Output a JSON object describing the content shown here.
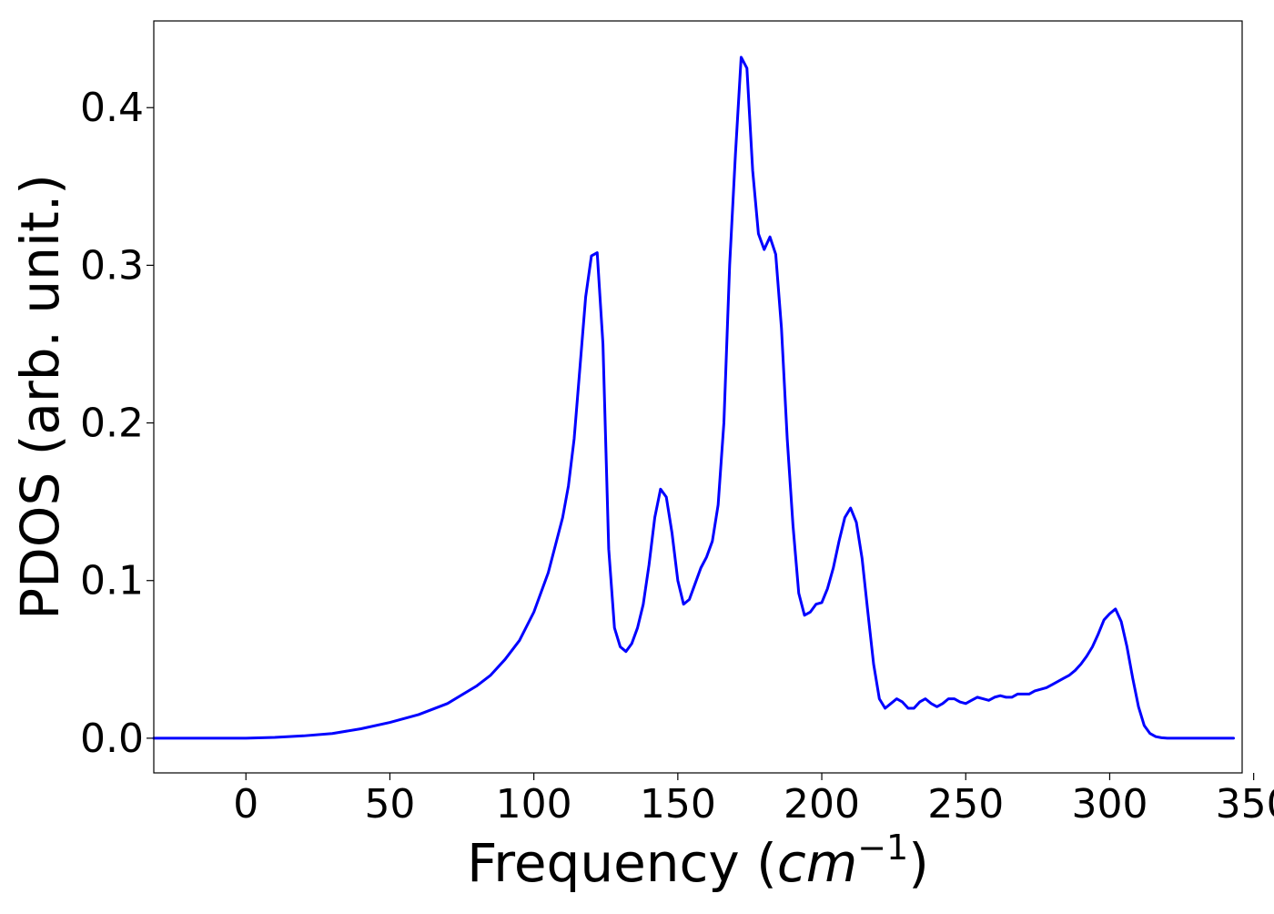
{
  "chart_data": {
    "type": "line",
    "title": "",
    "xlabel": {
      "prefix": "Frequency (",
      "math": "cm",
      "superscript": "−1",
      "suffix": ")"
    },
    "ylabel": "PDOS (arb. unit.)",
    "xlim": [
      -32,
      346
    ],
    "ylim": [
      -0.022,
      0.455
    ],
    "xticks": [
      0,
      50,
      100,
      150,
      200,
      250,
      300,
      350
    ],
    "xtick_labels": [
      "0",
      "50",
      "100",
      "150",
      "200",
      "250",
      "300",
      "350"
    ],
    "yticks": [
      0.0,
      0.1,
      0.2,
      0.3,
      0.4
    ],
    "ytick_labels": [
      "0.0",
      "0.1",
      "0.2",
      "0.3",
      "0.4"
    ],
    "grid": false,
    "legend": "none",
    "series": [
      {
        "color": "#0000ff",
        "x": [
          -32,
          -10,
          0,
          10,
          20,
          30,
          40,
          50,
          60,
          70,
          80,
          85,
          90,
          95,
          100,
          105,
          110,
          112,
          114,
          116,
          118,
          120,
          122,
          124,
          126,
          128,
          130,
          132,
          134,
          136,
          138,
          140,
          142,
          144,
          146,
          148,
          150,
          152,
          154,
          156,
          158,
          160,
          162,
          164,
          166,
          168,
          170,
          172,
          174,
          176,
          178,
          180,
          182,
          184,
          186,
          188,
          190,
          192,
          194,
          196,
          198,
          200,
          202,
          204,
          206,
          208,
          210,
          212,
          214,
          216,
          218,
          220,
          222,
          224,
          226,
          228,
          230,
          232,
          234,
          236,
          238,
          240,
          242,
          244,
          246,
          248,
          250,
          252,
          254,
          256,
          258,
          260,
          262,
          264,
          266,
          268,
          270,
          272,
          274,
          276,
          278,
          280,
          282,
          284,
          286,
          288,
          290,
          292,
          294,
          296,
          298,
          300,
          302,
          304,
          306,
          308,
          310,
          312,
          314,
          316,
          318,
          320,
          330,
          343
        ],
        "y": [
          0.0,
          0.0,
          0.0,
          0.0005,
          0.0015,
          0.003,
          0.006,
          0.01,
          0.015,
          0.022,
          0.033,
          0.04,
          0.05,
          0.062,
          0.08,
          0.105,
          0.14,
          0.16,
          0.19,
          0.235,
          0.28,
          0.306,
          0.308,
          0.25,
          0.12,
          0.07,
          0.058,
          0.055,
          0.06,
          0.07,
          0.085,
          0.11,
          0.14,
          0.158,
          0.153,
          0.13,
          0.1,
          0.085,
          0.088,
          0.098,
          0.108,
          0.115,
          0.125,
          0.148,
          0.2,
          0.3,
          0.37,
          0.432,
          0.425,
          0.36,
          0.32,
          0.31,
          0.318,
          0.307,
          0.26,
          0.19,
          0.135,
          0.092,
          0.078,
          0.08,
          0.085,
          0.086,
          0.095,
          0.108,
          0.125,
          0.14,
          0.146,
          0.137,
          0.114,
          0.08,
          0.047,
          0.025,
          0.019,
          0.022,
          0.025,
          0.023,
          0.019,
          0.019,
          0.023,
          0.025,
          0.022,
          0.02,
          0.022,
          0.025,
          0.025,
          0.023,
          0.022,
          0.024,
          0.026,
          0.025,
          0.024,
          0.026,
          0.027,
          0.026,
          0.026,
          0.028,
          0.028,
          0.028,
          0.03,
          0.031,
          0.032,
          0.034,
          0.036,
          0.038,
          0.04,
          0.043,
          0.047,
          0.052,
          0.058,
          0.066,
          0.075,
          0.079,
          0.082,
          0.074,
          0.058,
          0.038,
          0.02,
          0.008,
          0.003,
          0.001,
          0.0003,
          0.0,
          0.0,
          0.0
        ]
      }
    ]
  }
}
